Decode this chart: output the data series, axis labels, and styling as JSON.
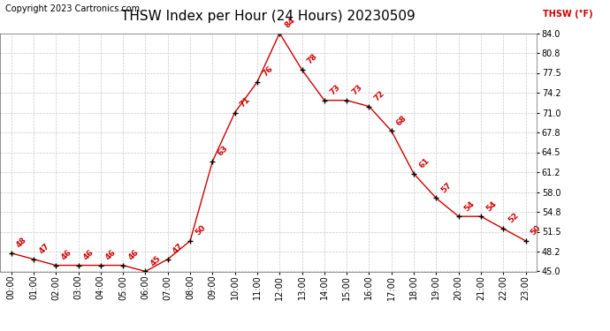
{
  "title": "THSW Index per Hour (24 Hours) 20230509",
  "copyright": "Copyright 2023 Cartronics.com",
  "legend_label": "THSW (°F)",
  "hours": [
    "00:00",
    "01:00",
    "02:00",
    "03:00",
    "04:00",
    "05:00",
    "06:00",
    "07:00",
    "08:00",
    "09:00",
    "10:00",
    "11:00",
    "12:00",
    "13:00",
    "14:00",
    "15:00",
    "16:00",
    "17:00",
    "18:00",
    "19:00",
    "20:00",
    "21:00",
    "22:00",
    "23:00"
  ],
  "values": [
    48,
    47,
    46,
    46,
    46,
    46,
    45,
    47,
    50,
    63,
    71,
    76,
    84,
    78,
    73,
    73,
    72,
    68,
    61,
    57,
    54,
    54,
    52,
    50
  ],
  "ylim": [
    45.0,
    84.0
  ],
  "yticks": [
    45.0,
    48.2,
    51.5,
    54.8,
    58.0,
    61.2,
    64.5,
    67.8,
    71.0,
    74.2,
    77.5,
    80.8,
    84.0
  ],
  "line_color": "#cc0000",
  "marker_color": "#000000",
  "title_color": "#000000",
  "copyright_color": "#000000",
  "legend_color": "#cc0000",
  "bg_color": "#ffffff",
  "grid_color": "#c8c8c8",
  "title_fontsize": 11,
  "copyright_fontsize": 7,
  "legend_fontsize": 7,
  "tick_fontsize": 7,
  "annotation_fontsize": 6.5
}
